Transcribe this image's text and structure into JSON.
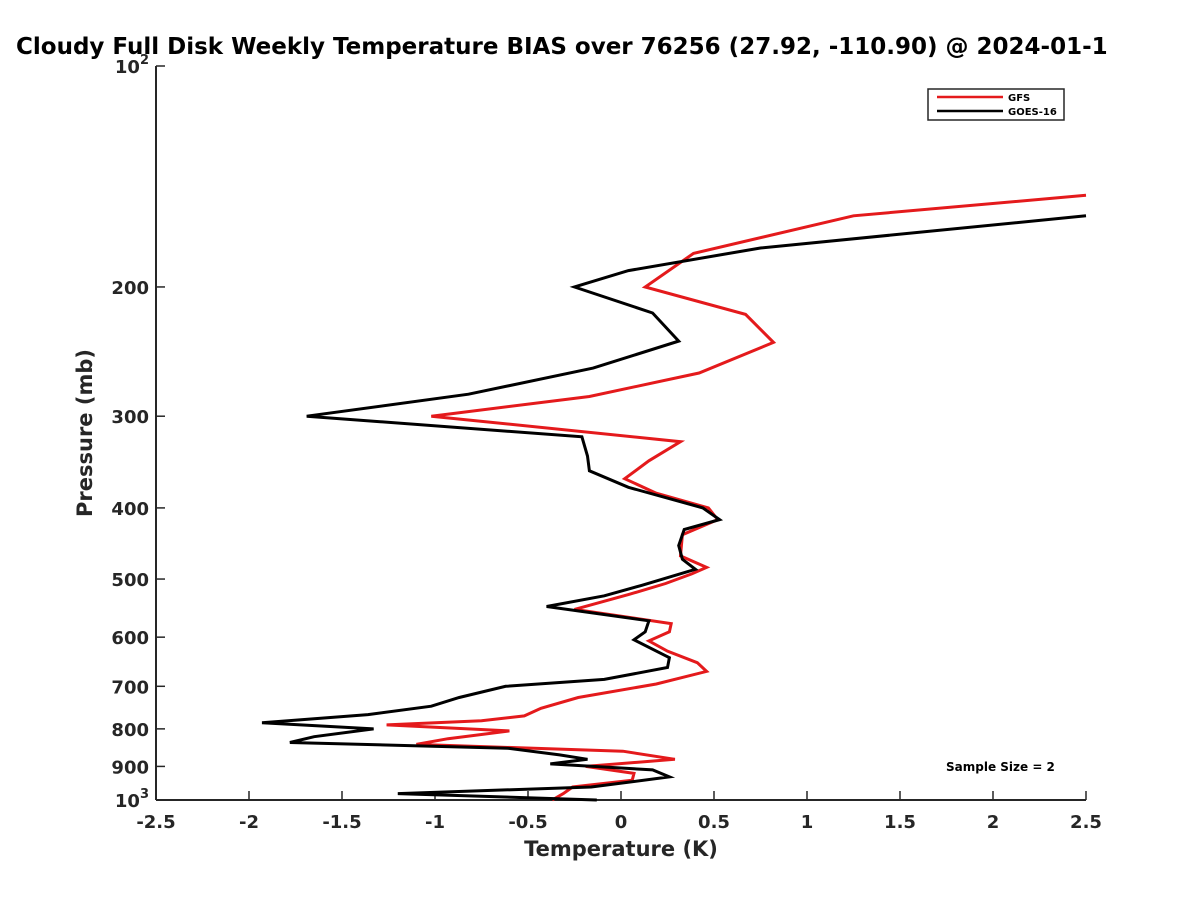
{
  "chart_data": {
    "type": "line",
    "title": "Cloudy Full Disk Weekly Temperature BIAS over 76256 (27.92, -110.90) @ 2024-01-1",
    "xlabel": "Temperature (K)",
    "ylabel": "Pressure (mb)",
    "xlim": [
      -2.5,
      2.5
    ],
    "ylim": [
      100,
      1000
    ],
    "y_scale": "log",
    "y_reversed": true,
    "grid": false,
    "legend_position": "top-right",
    "x_ticks": [
      "-2.5",
      "-2",
      "-1.5",
      "-1",
      "-0.5",
      "0",
      "0.5",
      "1",
      "1.5",
      "2",
      "2.5"
    ],
    "y_ticks": [
      {
        "value": 100,
        "base": "10",
        "exp": "2"
      },
      {
        "value": 200,
        "base": "200",
        "exp": ""
      },
      {
        "value": 300,
        "base": "300",
        "exp": ""
      },
      {
        "value": 400,
        "base": "400",
        "exp": ""
      },
      {
        "value": 500,
        "base": "500",
        "exp": ""
      },
      {
        "value": 600,
        "base": "600",
        "exp": ""
      },
      {
        "value": 700,
        "base": "700",
        "exp": ""
      },
      {
        "value": 800,
        "base": "800",
        "exp": ""
      },
      {
        "value": 900,
        "base": "900",
        "exp": ""
      },
      {
        "value": 1000,
        "base": "10",
        "exp": "3"
      }
    ],
    "annotation": "Sample Size = 2",
    "series": [
      {
        "name": "GFS",
        "color": "#e41a1c",
        "points": [
          [
            2.5,
            150
          ],
          [
            1.25,
            160
          ],
          [
            0.39,
            180
          ],
          [
            0.13,
            200
          ],
          [
            0.67,
            218
          ],
          [
            0.82,
            238
          ],
          [
            0.42,
            262
          ],
          [
            -0.17,
            282
          ],
          [
            -1.02,
            300
          ],
          [
            0.32,
            325
          ],
          [
            0.15,
            345
          ],
          [
            0.02,
            365
          ],
          [
            0.19,
            382
          ],
          [
            0.47,
            400
          ],
          [
            0.52,
            415
          ],
          [
            0.33,
            435
          ],
          [
            0.32,
            465
          ],
          [
            0.46,
            482
          ],
          [
            0.38,
            492
          ],
          [
            0.24,
            507
          ],
          [
            0.04,
            525
          ],
          [
            -0.25,
            550
          ],
          [
            0.27,
            575
          ],
          [
            0.26,
            590
          ],
          [
            0.15,
            607
          ],
          [
            0.25,
            627
          ],
          [
            0.41,
            650
          ],
          [
            0.46,
            668
          ],
          [
            0.19,
            695
          ],
          [
            -0.23,
            725
          ],
          [
            -0.43,
            750
          ],
          [
            -0.52,
            768
          ],
          [
            -0.75,
            780
          ],
          [
            -1.26,
            790
          ],
          [
            -0.6,
            805
          ],
          [
            -0.93,
            825
          ],
          [
            -1.1,
            840
          ],
          [
            0.01,
            858
          ],
          [
            0.29,
            880
          ],
          [
            -0.19,
            900
          ],
          [
            0.07,
            920
          ],
          [
            0.06,
            940
          ],
          [
            -0.26,
            960
          ],
          [
            -0.31,
            980
          ],
          [
            -0.37,
            1000
          ]
        ]
      },
      {
        "name": "GOES-16",
        "color": "#000000",
        "points": [
          [
            2.5,
            160
          ],
          [
            0.75,
            177
          ],
          [
            0.04,
            190
          ],
          [
            -0.25,
            200
          ],
          [
            0.17,
            217
          ],
          [
            0.31,
            237
          ],
          [
            -0.15,
            258
          ],
          [
            -0.82,
            280
          ],
          [
            -1.69,
            300
          ],
          [
            -0.21,
            320
          ],
          [
            -0.18,
            340
          ],
          [
            -0.17,
            356
          ],
          [
            0.04,
            375
          ],
          [
            0.44,
            400
          ],
          [
            0.53,
            415
          ],
          [
            0.34,
            428
          ],
          [
            0.31,
            450
          ],
          [
            0.33,
            470
          ],
          [
            0.4,
            485
          ],
          [
            0.11,
            510
          ],
          [
            -0.09,
            527
          ],
          [
            -0.4,
            545
          ],
          [
            0.15,
            570
          ],
          [
            0.13,
            590
          ],
          [
            0.07,
            605
          ],
          [
            0.26,
            640
          ],
          [
            0.25,
            660
          ],
          [
            -0.09,
            685
          ],
          [
            -0.62,
            700
          ],
          [
            -0.87,
            725
          ],
          [
            -1.02,
            745
          ],
          [
            -1.36,
            765
          ],
          [
            -1.93,
            785
          ],
          [
            -1.33,
            800
          ],
          [
            -1.65,
            820
          ],
          [
            -1.78,
            835
          ],
          [
            -0.61,
            850
          ],
          [
            -0.33,
            868
          ],
          [
            -0.18,
            880
          ],
          [
            -0.38,
            893
          ],
          [
            0.17,
            910
          ],
          [
            0.26,
            930
          ],
          [
            -0.16,
            960
          ],
          [
            -1.2,
            980
          ],
          [
            -0.13,
            1000
          ]
        ]
      }
    ]
  }
}
